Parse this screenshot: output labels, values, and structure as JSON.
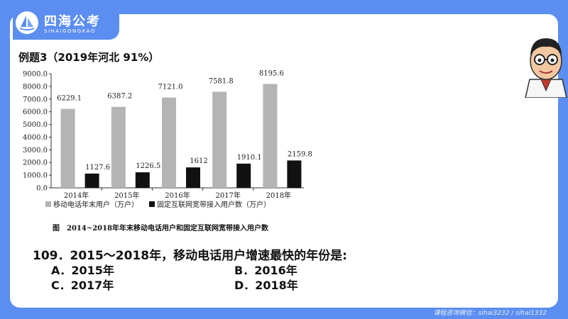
{
  "brand": {
    "title": "四海公考",
    "subtitle": "SIHAIGONGKAO"
  },
  "example_label": "例题3（2019年河北 91%）",
  "chart_data": {
    "type": "bar",
    "categories": [
      "2014年",
      "2015年",
      "2016年",
      "2017年",
      "2018年"
    ],
    "series": [
      {
        "name": "移动电话年末用户（万户）",
        "color": "#b4b4b4",
        "values": [
          6229.1,
          6387.2,
          7121.0,
          7581.8,
          8195.6
        ],
        "labels": [
          "6229.1",
          "6387.2",
          "7121.0",
          "7581.8",
          "8195.6"
        ]
      },
      {
        "name": "固定互联网宽带接入用户数（万户）",
        "color": "#111111",
        "values": [
          1127.6,
          1226.5,
          1612,
          1910.1,
          2159.8
        ],
        "labels": [
          "1127.6",
          "1226.5",
          "1612",
          "1910.1",
          "2159.8"
        ]
      }
    ],
    "ylim": [
      0,
      9000
    ],
    "yticks": [
      "0.0",
      "1000.0",
      "2000.0",
      "3000.0",
      "4000.0",
      "5000.0",
      "6000.0",
      "7000.0",
      "8000.0",
      "9000.0"
    ],
    "title": "图　2014~2018年年末移动电话用户和固定互联网宽带接入用户数",
    "legend_position": "bottom-left"
  },
  "question": "109．2015～2018年，移动电话用户增速最快的年份是:",
  "options": {
    "a": "A．2015年",
    "b": "B．2016年",
    "c": "C．2017年",
    "d": "D．2018年"
  },
  "contact": "课程咨询微信：sihai3232 / sihai1332"
}
